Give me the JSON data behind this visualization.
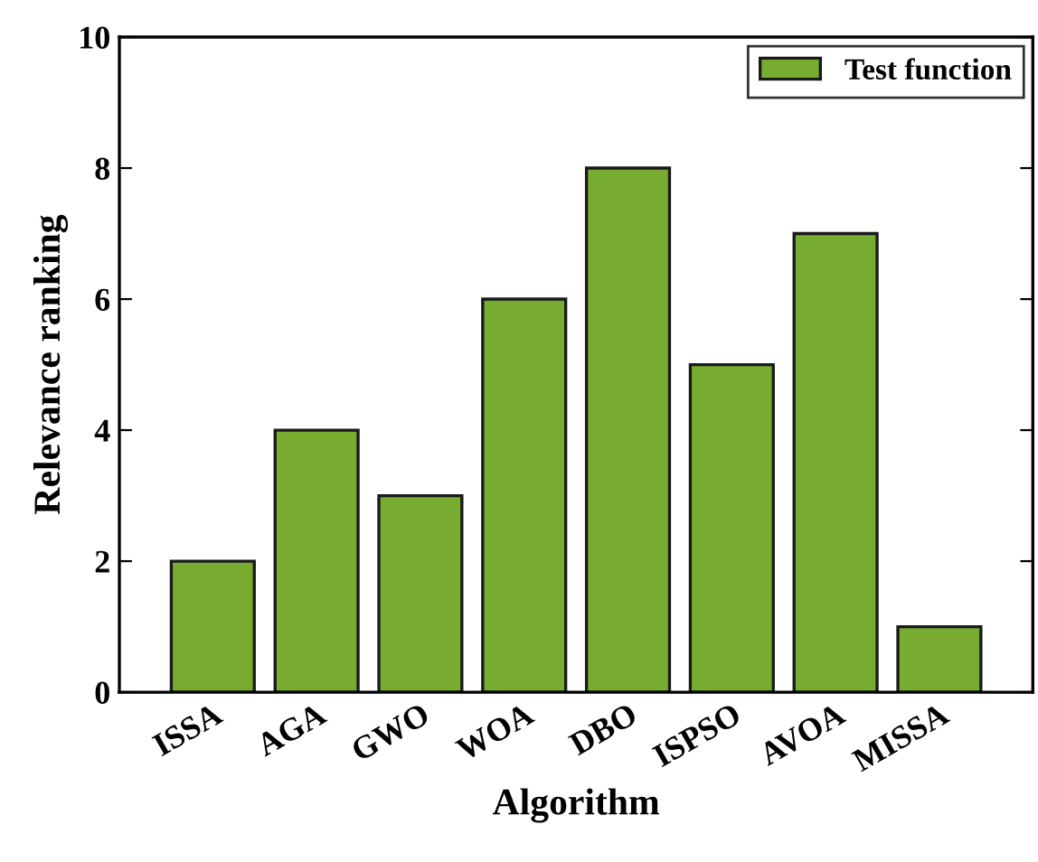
{
  "chart_data": {
    "type": "bar",
    "xlabel": "Algorithm",
    "ylabel": "Relevance ranking",
    "categories": [
      "ISSA",
      "AGA",
      "GWO",
      "WOA",
      "DBO",
      "ISPSO",
      "AVOA",
      "MISSA"
    ],
    "series": [
      {
        "name": "Test function",
        "color": "#77ac30",
        "values": [
          2,
          4,
          3,
          6,
          8,
          5,
          7,
          1
        ]
      }
    ],
    "ylim": [
      0,
      10
    ],
    "yticks": [
      0,
      2,
      4,
      6,
      8,
      10
    ],
    "grid": false,
    "legend": "top right"
  }
}
